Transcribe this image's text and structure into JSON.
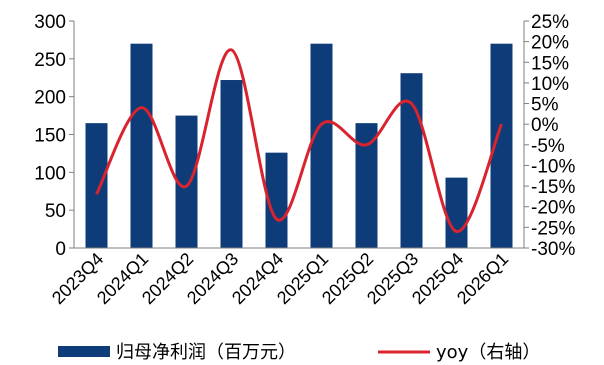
{
  "chart_data": {
    "type": "bar",
    "categories": [
      "2023Q4",
      "2024Q1",
      "2024Q2",
      "2024Q3",
      "2024Q4",
      "2025Q1",
      "2025Q2",
      "2025Q3",
      "2025Q4",
      "2026Q1"
    ],
    "series": [
      {
        "name": "归母净利润（百万元）",
        "type": "bar",
        "axis": "left",
        "color": "#0d3c78",
        "values": [
          165,
          270,
          175,
          222,
          126,
          270,
          165,
          231,
          93,
          270
        ]
      },
      {
        "name": "yoy（右轴）",
        "type": "line",
        "axis": "right",
        "color": "#d9232e",
        "values": [
          -17,
          4,
          -15,
          18,
          -23,
          0,
          -5,
          5,
          -26,
          0
        ]
      }
    ],
    "y_left": {
      "min": 0,
      "max": 300,
      "ticks": [
        0,
        50,
        100,
        150,
        200,
        250,
        300
      ],
      "tick_labels": [
        "0",
        "50",
        "100",
        "150",
        "200",
        "250",
        "300"
      ]
    },
    "y_right": {
      "min": -30,
      "max": 25,
      "ticks": [
        -30,
        -25,
        -20,
        -15,
        -10,
        -5,
        0,
        5,
        10,
        15,
        20,
        25
      ],
      "tick_labels": [
        "-30%",
        "-25%",
        "-20%",
        "-15%",
        "-10%",
        "-5%",
        "0%",
        "5%",
        "10%",
        "15%",
        "20%",
        "25%"
      ],
      "unit": "%"
    },
    "grid": false,
    "legend_position": "bottom"
  }
}
